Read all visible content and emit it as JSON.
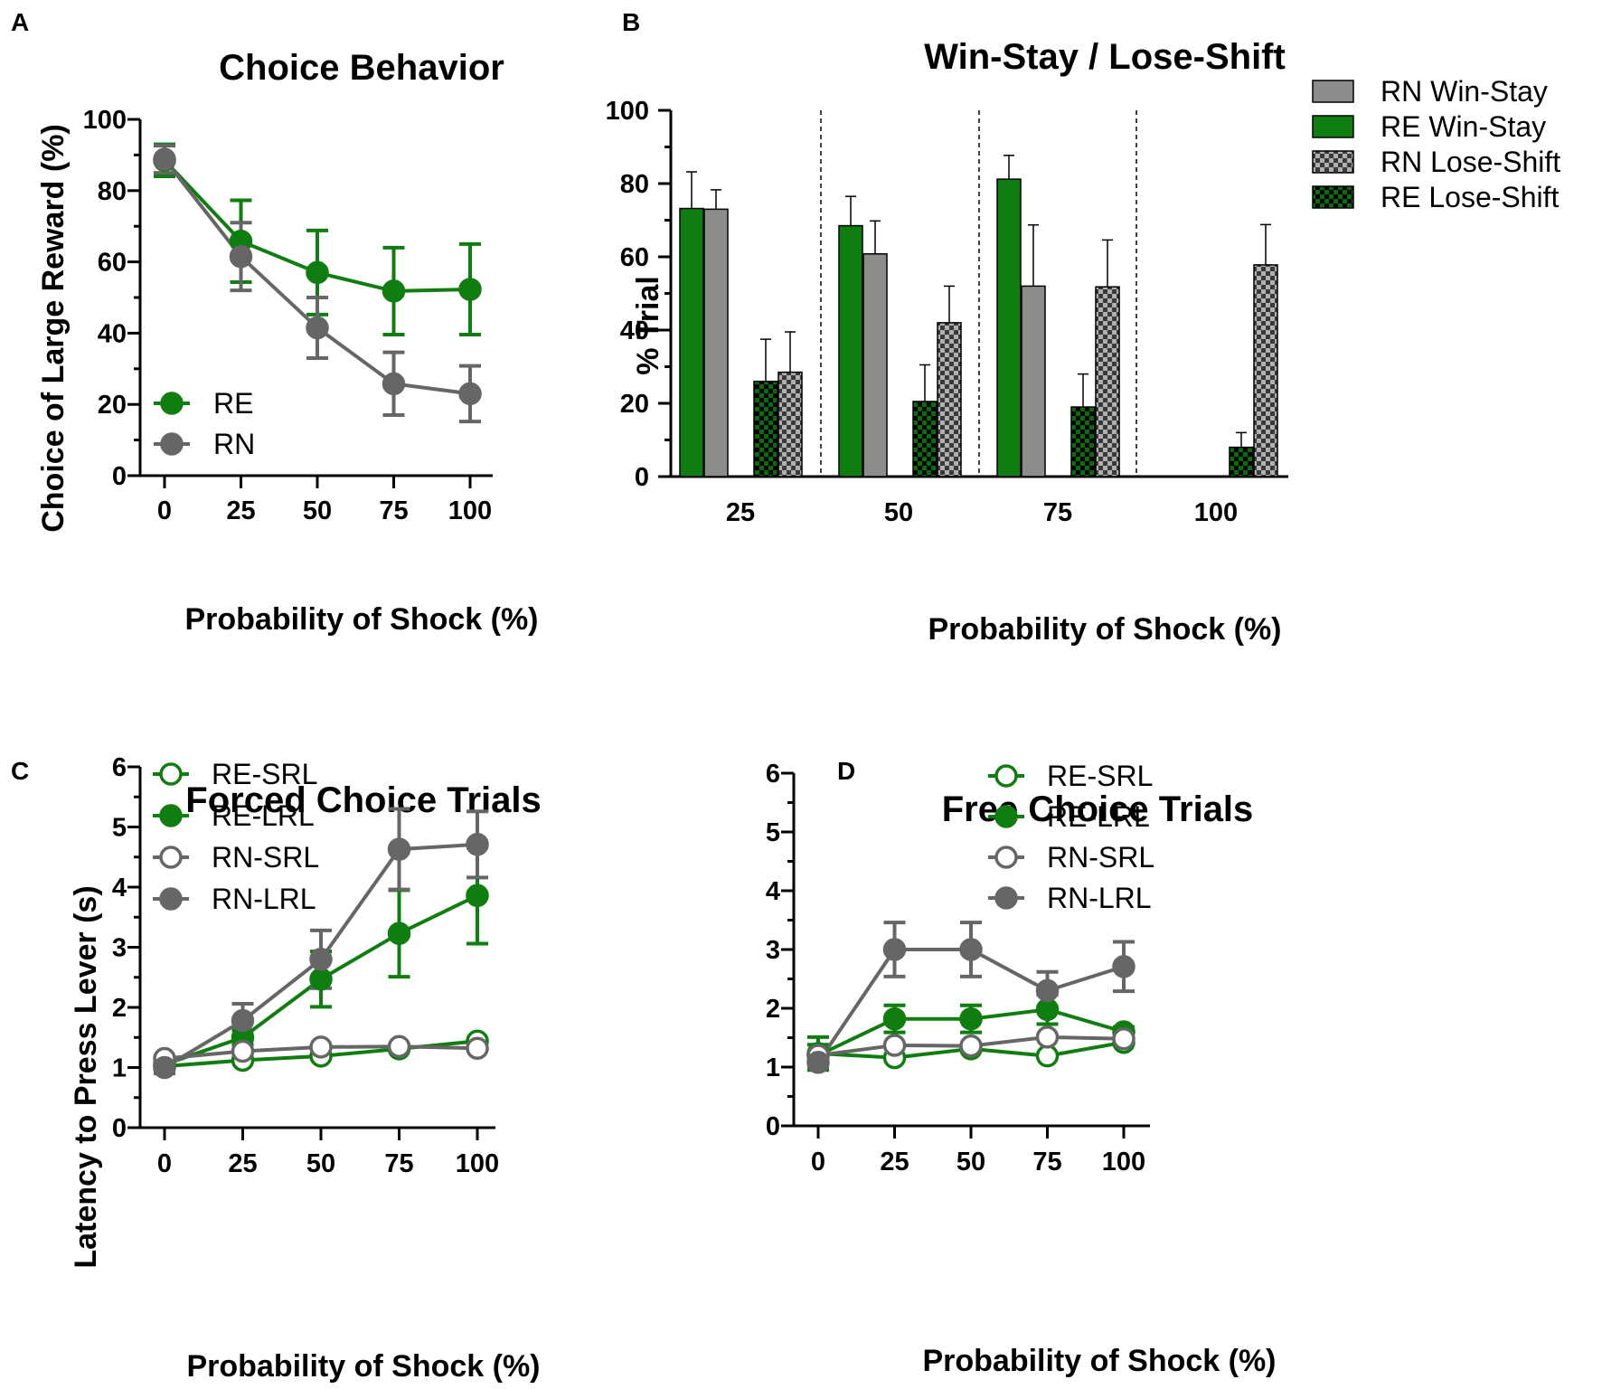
{
  "figure": {
    "colors": {
      "RE": "#0f7d0f",
      "RN": "#666666",
      "RN_bar": "#8c8c8c",
      "axis": "#000000"
    }
  },
  "chart_data": [
    {
      "id": "A",
      "panel_label": "A",
      "type": "line",
      "title": "Choice Behavior",
      "xlabel": "Probability of Shock (%)",
      "ylabel": "Choice of Large Reward (%)",
      "x": [
        0,
        25,
        50,
        75,
        100
      ],
      "x_ticks": [
        "0",
        "25",
        "50",
        "75",
        "100"
      ],
      "ylim": [
        0,
        100
      ],
      "y_ticks": [
        "0",
        "20",
        "40",
        "60",
        "80",
        "100"
      ],
      "legend": [
        "RE",
        "RN"
      ],
      "series": [
        {
          "name": "RE",
          "color": "#0f7d0f",
          "filled": true,
          "values": [
            88.5,
            65.8,
            57.0,
            51.8,
            52.3
          ],
          "errors": [
            4.5,
            11.5,
            11.8,
            12.2,
            12.7
          ]
        },
        {
          "name": "RN",
          "color": "#666666",
          "filled": true,
          "values": [
            88.8,
            61.5,
            41.5,
            25.8,
            23.0
          ],
          "errors": [
            3.8,
            9.5,
            8.5,
            8.8,
            7.8
          ]
        }
      ]
    },
    {
      "id": "B",
      "panel_label": "B",
      "type": "bar",
      "title": "Win-Stay / Lose-Shift",
      "xlabel": "Probability of Shock (%)",
      "ylabel": "% Trial",
      "categories": [
        "25",
        "50",
        "75",
        "100"
      ],
      "ylim": [
        0,
        100
      ],
      "y_ticks": [
        "0",
        "20",
        "40",
        "60",
        "80",
        "100"
      ],
      "legend": [
        "RN Win-Stay",
        "RE Win-Stay",
        "RN Lose-Shift",
        "RE Lose-Shift"
      ],
      "series": [
        {
          "name": "RE Win-Stay",
          "color": "#0f7d0f",
          "pattern": "solid",
          "values": [
            73.2,
            68.5,
            81.2,
            0
          ],
          "errors": [
            10.0,
            8.0,
            6.5,
            0
          ]
        },
        {
          "name": "RN Win-Stay",
          "color": "#8c8c8c",
          "pattern": "solid",
          "values": [
            73.0,
            60.8,
            52.0,
            0
          ],
          "errors": [
            5.3,
            9.0,
            16.7,
            0
          ]
        },
        {
          "name": "RE Lose-Shift",
          "color": "#0f7d0f",
          "pattern": "checker",
          "values": [
            26.0,
            20.5,
            19.0,
            8.0
          ],
          "errors": [
            11.5,
            10.0,
            9.0,
            4.0
          ]
        },
        {
          "name": "RN Lose-Shift",
          "color": "#8c8c8c",
          "pattern": "checker",
          "values": [
            28.5,
            42.0,
            51.8,
            57.8
          ],
          "errors": [
            11.0,
            10.0,
            12.8,
            11.0
          ]
        }
      ]
    },
    {
      "id": "C",
      "panel_label": "C",
      "type": "line",
      "title": "Forced Choice Trials",
      "xlabel": "Probability of Shock (%)",
      "ylabel": "Latency to Press Lever (s)",
      "x": [
        0,
        25,
        50,
        75,
        100
      ],
      "x_ticks": [
        "0",
        "25",
        "50",
        "75",
        "100"
      ],
      "ylim": [
        0,
        6
      ],
      "y_ticks": [
        "0",
        "1",
        "2",
        "3",
        "4",
        "5",
        "6"
      ],
      "legend": [
        "RE-SRL",
        "RE-LRL",
        "RN-SRL",
        "RN-LRL"
      ],
      "series": [
        {
          "name": "RE-SRL",
          "color": "#0f7d0f",
          "filled": false,
          "values": [
            1.02,
            1.12,
            1.19,
            1.31,
            1.44
          ],
          "errors": [
            0,
            0,
            0,
            0,
            0
          ]
        },
        {
          "name": "RE-LRL",
          "color": "#0f7d0f",
          "filled": true,
          "values": [
            1.05,
            1.5,
            2.47,
            3.23,
            3.86
          ],
          "errors": [
            0.05,
            0.12,
            0.46,
            0.72,
            0.8
          ]
        },
        {
          "name": "RN-SRL",
          "color": "#666666",
          "filled": false,
          "values": [
            1.15,
            1.27,
            1.34,
            1.35,
            1.32
          ],
          "errors": [
            0,
            0,
            0,
            0,
            0
          ]
        },
        {
          "name": "RN-LRL",
          "color": "#666666",
          "filled": true,
          "values": [
            1.0,
            1.78,
            2.8,
            4.63,
            4.71
          ],
          "errors": [
            0.1,
            0.28,
            0.48,
            0.67,
            0.55
          ]
        }
      ]
    },
    {
      "id": "D",
      "panel_label": "D",
      "type": "line",
      "title": "Free Choice Trials",
      "xlabel": "Probability of Shock (%)",
      "ylabel": "",
      "x": [
        0,
        25,
        50,
        75,
        100
      ],
      "x_ticks": [
        "0",
        "25",
        "50",
        "75",
        "100"
      ],
      "ylim": [
        0,
        6
      ],
      "y_ticks": [
        "0",
        "1",
        "2",
        "3",
        "4",
        "5",
        "6"
      ],
      "legend": [
        "RE-SRL",
        "RE-LRL",
        "RN-SRL",
        "RN-LRL"
      ],
      "series": [
        {
          "name": "RE-SRL",
          "color": "#0f7d0f",
          "filled": false,
          "values": [
            1.23,
            1.16,
            1.31,
            1.19,
            1.42
          ],
          "errors": [
            0.28,
            0,
            0,
            0,
            0
          ]
        },
        {
          "name": "RE-LRL",
          "color": "#0f7d0f",
          "filled": true,
          "values": [
            1.2,
            1.82,
            1.82,
            1.98,
            1.6
          ],
          "errors": [
            0.18,
            0.23,
            0.23,
            0.25,
            0.08
          ]
        },
        {
          "name": "RN-SRL",
          "color": "#666666",
          "filled": false,
          "values": [
            1.2,
            1.37,
            1.36,
            1.51,
            1.48
          ],
          "errors": [
            0,
            0,
            0,
            0,
            0
          ]
        },
        {
          "name": "RN-LRL",
          "color": "#666666",
          "filled": true,
          "values": [
            1.08,
            3.0,
            3.0,
            2.3,
            2.71
          ],
          "errors": [
            0.08,
            0.46,
            0.46,
            0.32,
            0.42
          ]
        }
      ]
    }
  ]
}
